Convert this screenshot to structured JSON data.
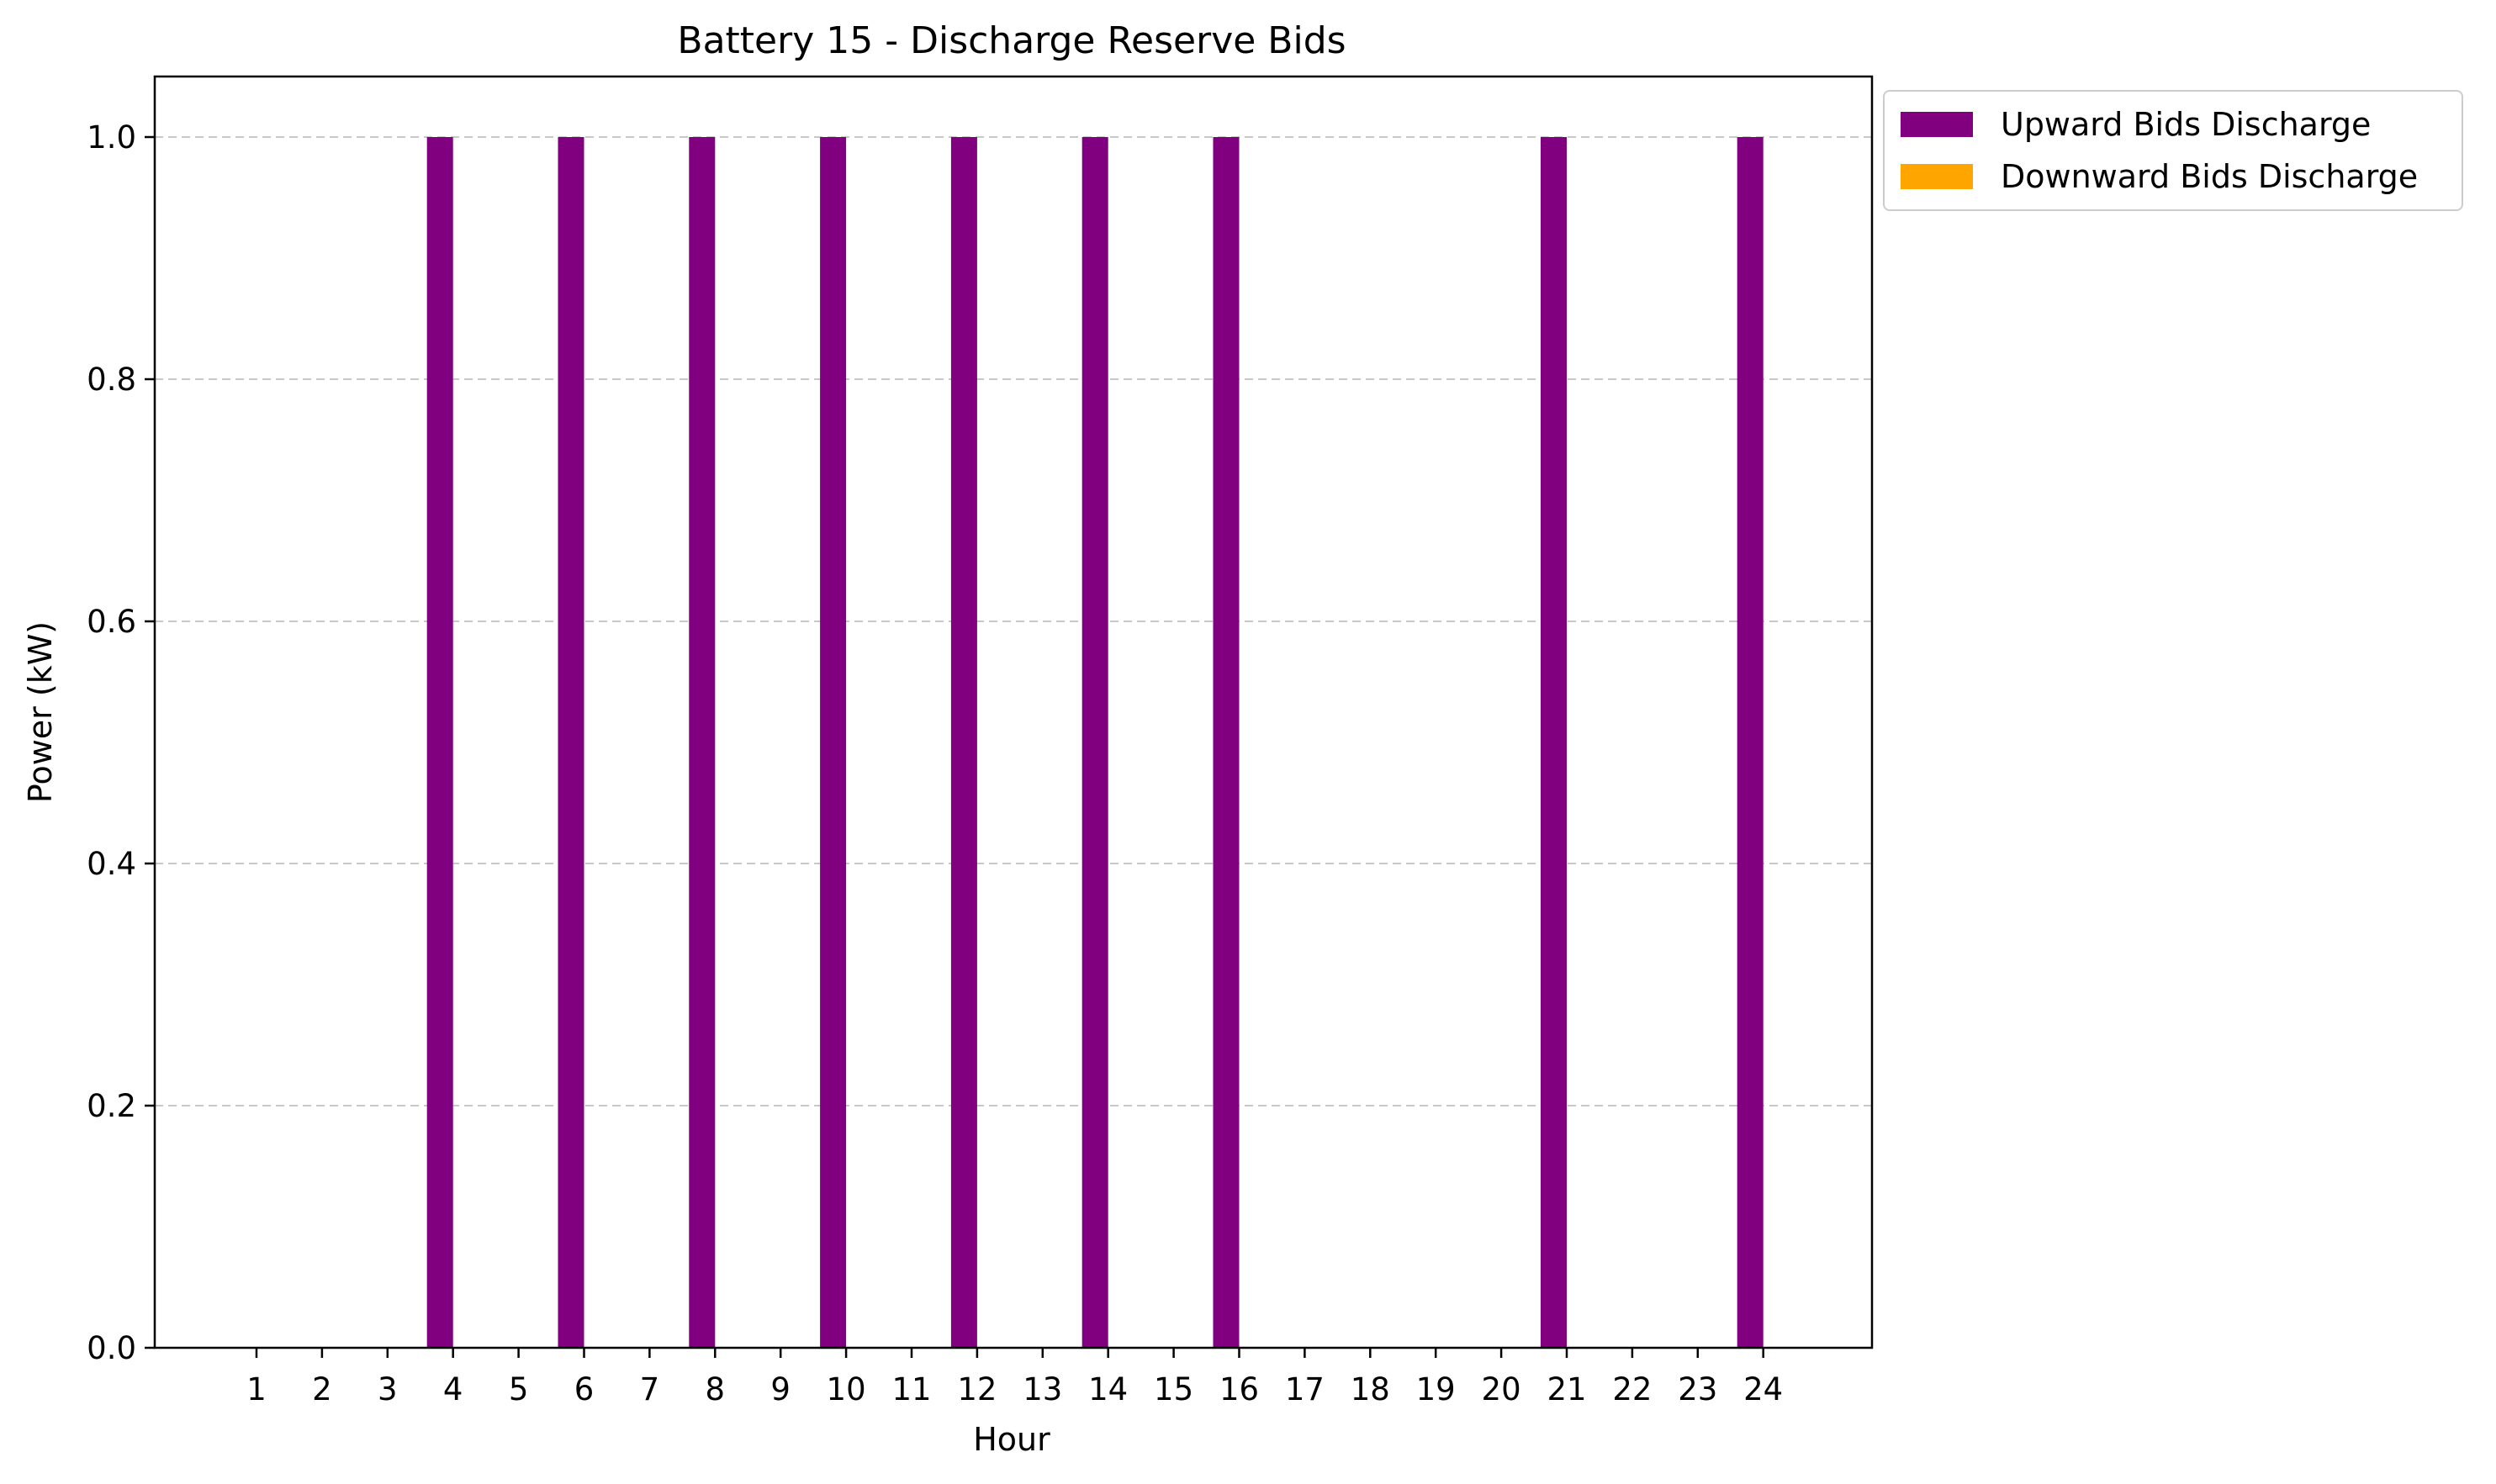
{
  "chart_data": {
    "type": "bar",
    "title": "Battery 15 - Discharge Reserve Bids",
    "xlabel": "Hour",
    "ylabel": "Power (kW)",
    "categories": [
      "1",
      "2",
      "3",
      "4",
      "5",
      "6",
      "7",
      "8",
      "9",
      "10",
      "11",
      "12",
      "13",
      "14",
      "15",
      "16",
      "17",
      "18",
      "19",
      "20",
      "21",
      "22",
      "23",
      "24"
    ],
    "series": [
      {
        "name": "Upward Bids Discharge",
        "color": "#800080",
        "values": [
          0,
          0,
          0,
          1,
          0,
          1,
          0,
          1,
          0,
          1,
          0,
          1,
          0,
          1,
          0,
          1,
          0,
          0,
          0,
          0,
          1,
          0,
          0,
          1
        ]
      },
      {
        "name": "Downward Bids Discharge",
        "color": "#FFA500",
        "values": [
          0,
          0,
          0,
          0,
          0,
          0,
          0,
          0,
          0,
          0,
          0,
          0,
          0,
          0,
          0,
          0,
          0,
          0,
          0,
          0,
          0,
          0,
          0,
          0
        ]
      }
    ],
    "ylim": [
      0,
      1.05
    ],
    "yticks": [
      "0.0",
      "0.2",
      "0.4",
      "0.6",
      "0.8",
      "1.0"
    ],
    "grid": "y-dashed",
    "legend": "outside-top-right"
  }
}
